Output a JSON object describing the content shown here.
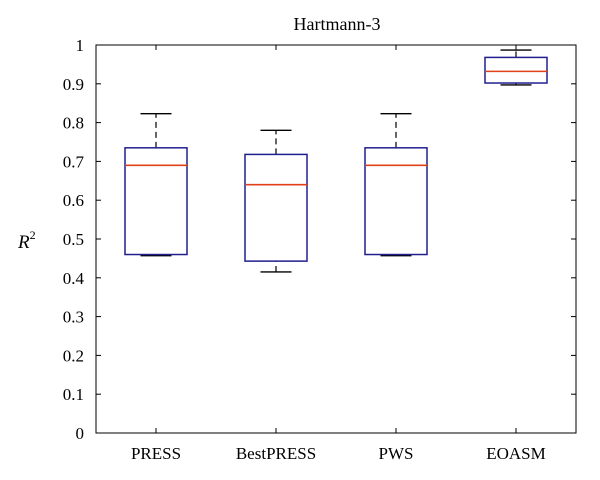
{
  "chart_data": {
    "type": "box",
    "title": "Hartmann-3",
    "ylabel": "R",
    "ylabel_superscript": "2",
    "xlabel": "",
    "ylim": [
      0,
      1
    ],
    "yticks": [
      "0",
      "0.1",
      "0.2",
      "0.3",
      "0.4",
      "0.5",
      "0.6",
      "0.7",
      "0.8",
      "0.9",
      "1"
    ],
    "grid": false,
    "categories": [
      "PRESS",
      "BestPRESS",
      "PWS",
      "EOASM"
    ],
    "boxes": [
      {
        "name": "PRESS",
        "min": 0.457,
        "q1": 0.46,
        "median": 0.69,
        "q3": 0.735,
        "max": 0.823
      },
      {
        "name": "BestPRESS",
        "min": 0.415,
        "q1": 0.443,
        "median": 0.64,
        "q3": 0.718,
        "max": 0.78
      },
      {
        "name": "PWS",
        "min": 0.457,
        "q1": 0.46,
        "median": 0.69,
        "q3": 0.735,
        "max": 0.823
      },
      {
        "name": "EOASM",
        "min": 0.897,
        "q1": 0.902,
        "median": 0.932,
        "q3": 0.968,
        "max": 0.987
      }
    ],
    "colors": {
      "box": "#1f1f8f",
      "median": "#e0401a",
      "whisker": "#000000",
      "axes": "#000000"
    }
  }
}
